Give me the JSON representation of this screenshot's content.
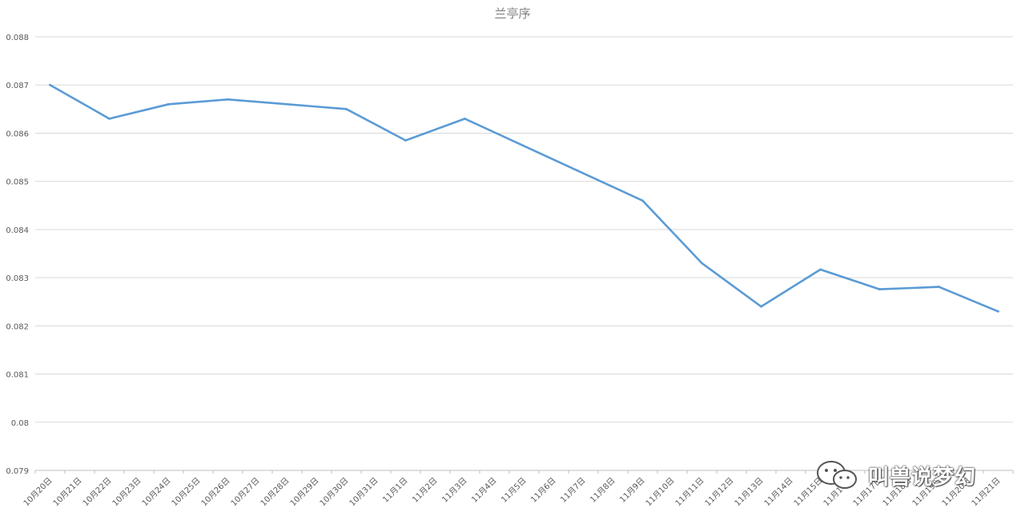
{
  "chart_data": {
    "type": "line",
    "title": "兰亭序",
    "xlabel": "",
    "ylabel": "",
    "ylim": [
      0.079,
      0.088
    ],
    "yticks": [
      "0.079",
      "0.08",
      "0.081",
      "0.082",
      "0.083",
      "0.084",
      "0.085",
      "0.086",
      "0.087",
      "0.088"
    ],
    "grid": true,
    "legend": "none",
    "line_color": "#5b9bd5",
    "categories": [
      "10月20日",
      "10月21日",
      "10月22日",
      "10月23日",
      "10月24日",
      "10月25日",
      "10月26日",
      "10月27日",
      "10月28日",
      "10月29日",
      "10月30日",
      "10月31日",
      "11月1日",
      "11月2日",
      "11月3日",
      "11月4日",
      "11月5日",
      "11月6日",
      "11月7日",
      "11月8日",
      "11月9日",
      "11月10日",
      "11月11日",
      "11月12日",
      "11月13日",
      "11月14日",
      "11月15日",
      "11月16日",
      "11月17日",
      "11月18日",
      "11月19日",
      "11月20日",
      "11月21日"
    ],
    "series": [
      {
        "x": [
          "10月20日",
          "10月22日",
          "10月24日",
          "10月26日",
          "10月30日",
          "11月1日",
          "11月3日",
          "11月9日",
          "11月11日",
          "11月13日",
          "11月15日",
          "11月17日",
          "11月19日",
          "11月21日"
        ],
        "values": [
          0.087,
          0.0863,
          0.0866,
          0.0867,
          0.0865,
          0.08585,
          0.0863,
          0.0846,
          0.0833,
          0.0824,
          0.08317,
          0.08276,
          0.08281,
          0.0823
        ]
      }
    ]
  },
  "watermark": {
    "icon": "wechat-icon",
    "text": "叫兽说梦幻"
  }
}
